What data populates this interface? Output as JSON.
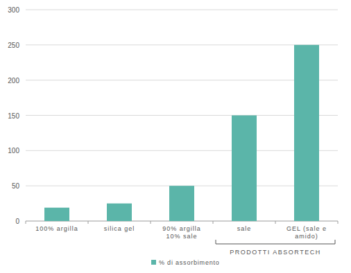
{
  "chart_data": {
    "type": "bar",
    "categories": [
      "100% argilla",
      "silica gel",
      "90% argilla\n10% sale",
      "sale",
      "GEL (sale e\namido)"
    ],
    "series": [
      {
        "name": "% di assorbimento",
        "color": "#5bb5a9",
        "values": [
          19,
          25,
          50,
          150,
          250
        ]
      }
    ],
    "ylim": [
      0,
      300
    ],
    "yticks": [
      0,
      50,
      100,
      150,
      200,
      250,
      300
    ],
    "grid": true,
    "legend": "bottom",
    "annotations": [
      {
        "text": "PRODOTTI ABSORTECH",
        "categories": [
          "sale",
          "GEL (sale e\namido)"
        ]
      }
    ]
  }
}
